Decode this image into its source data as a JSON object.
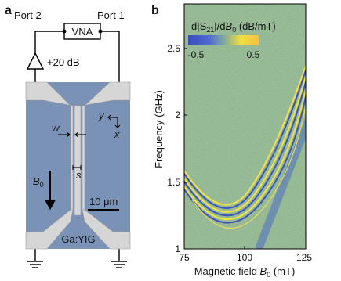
{
  "panel_a": {
    "label": "a",
    "port_2": "Port 2",
    "port_1": "Port 1",
    "analyzer": "VNA",
    "amplifier": "+20 dB",
    "width_label": "w",
    "spacing_label": "s",
    "axis_y": "y",
    "axis_x": "x",
    "field_label": "B",
    "field_subscript": "0",
    "scale_bar": "10 μm",
    "material": "Ga:YIG"
  },
  "panel_b": {
    "label": "b",
    "colorbar_title": [
      "d|S",
      "21",
      "|/d",
      "B",
      "0",
      " (dB/mT)"
    ],
    "colorbar_ticks": [
      "-0.5",
      "0.5"
    ],
    "y_label": "Frequency (GHz)",
    "y_ticks": [
      "1",
      "1.5",
      "2",
      "2.5"
    ],
    "x_label": [
      "Magnetic field ",
      "B",
      "0",
      " (mT)"
    ],
    "x_ticks": [
      "75",
      "100",
      "125"
    ]
  }
}
